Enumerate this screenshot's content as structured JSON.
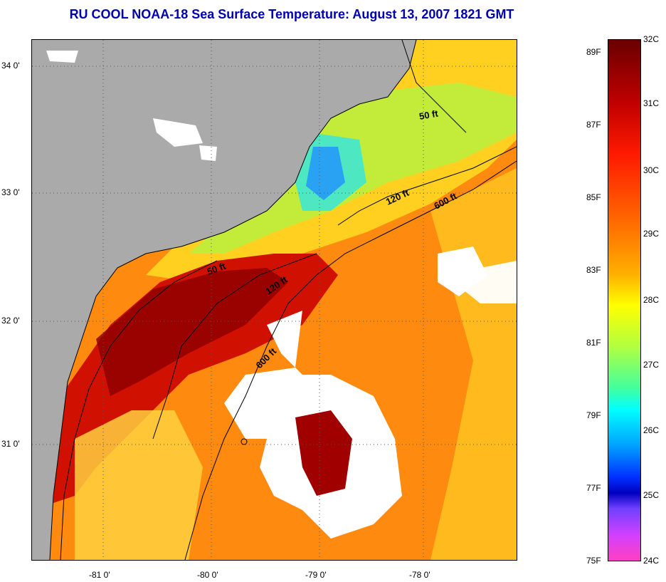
{
  "title": "RU COOL  NOAA-18  Sea Surface Temperature:  August 13, 2007 1821 GMT",
  "map": {
    "lat_labels": [
      "34 0'",
      "33 0'",
      "32 0'",
      "31 0'"
    ],
    "lon_labels": [
      "-81 0'",
      "-80 0'",
      "-79 0'",
      "-78 0'"
    ],
    "contour_labels": [
      {
        "text": "50 ft"
      },
      {
        "text": "120 ft"
      },
      {
        "text": "600 ft"
      },
      {
        "text": "50 ft"
      },
      {
        "text": "120 ft"
      },
      {
        "text": "600 ft"
      }
    ]
  },
  "colorbar": {
    "celsius": [
      "32C",
      "31C",
      "30C",
      "29C",
      "28C",
      "27C",
      "26C",
      "25C",
      "24C"
    ],
    "fahrenheit": [
      "89F",
      "87F",
      "85F",
      "83F",
      "81F",
      "79F",
      "77F",
      "75F"
    ]
  },
  "colors": {
    "title": "#0000b0",
    "land": "#aaaaaa",
    "clouds": "#ffffff",
    "warm": "#c00000",
    "cool": "#00c8ff"
  }
}
